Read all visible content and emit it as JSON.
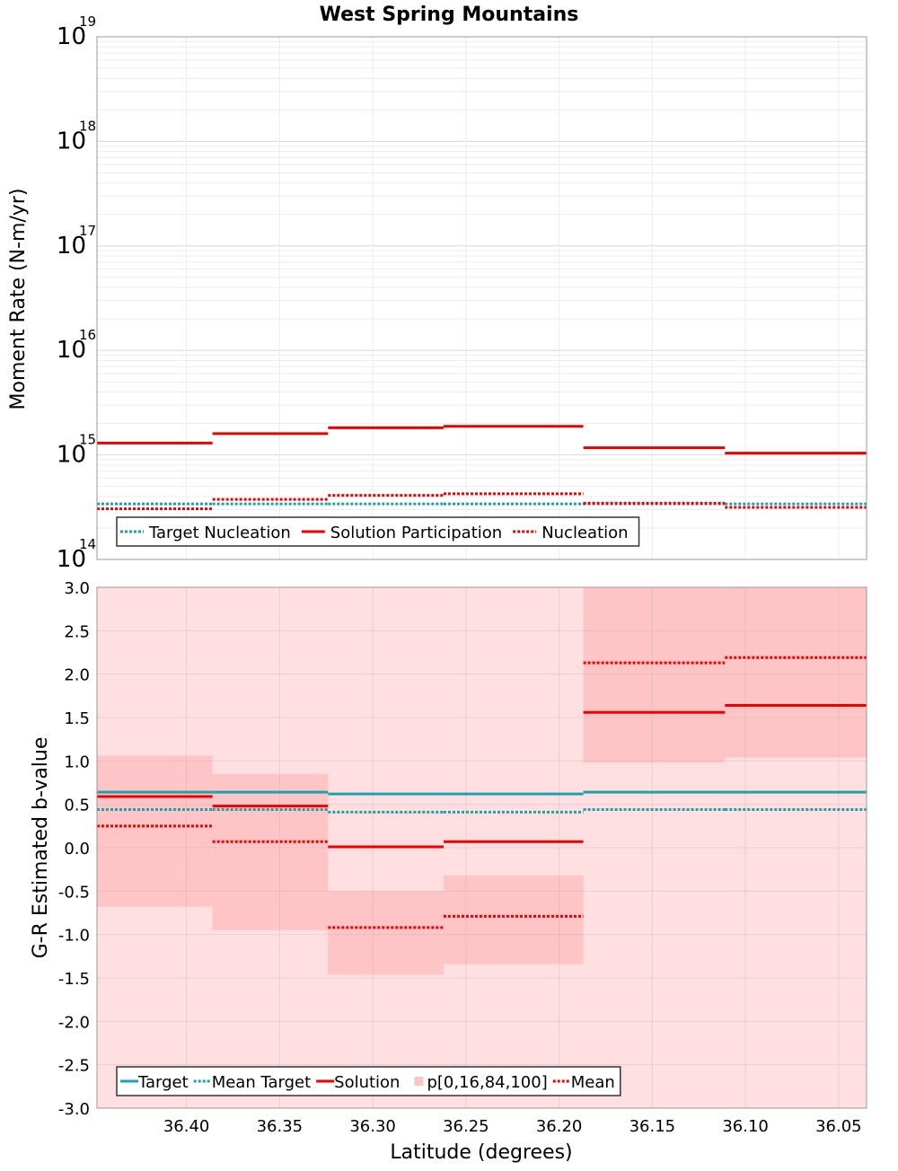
{
  "chart_data": [
    {
      "type": "line",
      "title": "West Spring Mountains",
      "xlabel": "",
      "ylabel": "Moment Rate (N-m/yr)",
      "yscale": "log",
      "ylim": [
        100000000000000.0,
        1e+19
      ],
      "xlim": [
        36.448,
        36.035
      ],
      "x_reversed": true,
      "grid": true,
      "legend": "bottom-left",
      "y_tick_labels": [
        {
          "base": "10",
          "exp": "14",
          "value": 100000000000000.0
        },
        {
          "base": "10",
          "exp": "15",
          "value": 1000000000000000.0
        },
        {
          "base": "10",
          "exp": "16",
          "value": 1e+16
        },
        {
          "base": "10",
          "exp": "17",
          "value": 1e+17
        },
        {
          "base": "10",
          "exp": "18",
          "value": 1e+18
        },
        {
          "base": "10",
          "exp": "19",
          "value": 1e+19
        }
      ],
      "series": [
        {
          "name": "Target Nucleation",
          "style": "dotted",
          "color": "#1aa3a8",
          "segments": [
            {
              "x0": 36.448,
              "x1": 36.386,
              "y": 340000000000000.0
            },
            {
              "x0": 36.386,
              "x1": 36.324,
              "y": 340000000000000.0
            },
            {
              "x0": 36.324,
              "x1": 36.262,
              "y": 340000000000000.0
            },
            {
              "x0": 36.262,
              "x1": 36.187,
              "y": 340000000000000.0
            },
            {
              "x0": 36.187,
              "x1": 36.111,
              "y": 340000000000000.0
            },
            {
              "x0": 36.111,
              "x1": 36.035,
              "y": 340000000000000.0
            }
          ]
        },
        {
          "name": "Solution Participation",
          "style": "solid",
          "color": "#ee0000",
          "segments": [
            {
              "x0": 36.448,
              "x1": 36.386,
              "y": 1300000000000000.0
            },
            {
              "x0": 36.386,
              "x1": 36.324,
              "y": 1600000000000000.0
            },
            {
              "x0": 36.324,
              "x1": 36.262,
              "y": 1820000000000000.0
            },
            {
              "x0": 36.262,
              "x1": 36.187,
              "y": 1880000000000000.0
            },
            {
              "x0": 36.187,
              "x1": 36.111,
              "y": 1170000000000000.0
            },
            {
              "x0": 36.111,
              "x1": 36.035,
              "y": 1040000000000000.0
            }
          ]
        },
        {
          "name": "Nucleation",
          "style": "dotted",
          "color": "#ee0000",
          "segments": [
            {
              "x0": 36.448,
              "x1": 36.386,
              "y": 305000000000000.0
            },
            {
              "x0": 36.386,
              "x1": 36.324,
              "y": 375000000000000.0
            },
            {
              "x0": 36.324,
              "x1": 36.262,
              "y": 410000000000000.0
            },
            {
              "x0": 36.262,
              "x1": 36.187,
              "y": 425000000000000.0
            },
            {
              "x0": 36.187,
              "x1": 36.111,
              "y": 345000000000000.0
            },
            {
              "x0": 36.111,
              "x1": 36.035,
              "y": 315000000000000.0
            }
          ]
        }
      ]
    },
    {
      "type": "line",
      "title": "",
      "xlabel": "Latitude (degrees)",
      "ylabel": "G-R Estimated b-value",
      "ylim": [
        -3.0,
        3.0
      ],
      "xlim": [
        36.448,
        36.035
      ],
      "x_reversed": true,
      "grid": true,
      "legend": "bottom-left",
      "x_ticks": [
        36.4,
        36.35,
        36.3,
        36.25,
        36.2,
        36.15,
        36.1,
        36.05
      ],
      "x_tick_labels": [
        "36.40",
        "36.35",
        "36.30",
        "36.25",
        "36.20",
        "36.15",
        "36.10",
        "36.05"
      ],
      "y_ticks": [
        -3.0,
        -2.5,
        -2.0,
        -1.5,
        -1.0,
        -0.5,
        0.0,
        0.5,
        1.0,
        1.5,
        2.0,
        2.5,
        3.0
      ],
      "y_tick_labels": [
        "-3.0",
        "-2.5",
        "-2.0",
        "-1.5",
        "-1.0",
        "-0.5",
        "0.0",
        "0.5",
        "1.0",
        "1.5",
        "2.0",
        "2.5",
        "3.0"
      ],
      "bands": {
        "name": "p[0,16,84,100]",
        "outer_color": "#ffdfe0",
        "inner_color": "#ffc4c5",
        "outer_range": [
          -3.0,
          3.0
        ],
        "segments": [
          {
            "x0": 36.448,
            "x1": 36.386,
            "p16": -0.68,
            "p84": 1.06
          },
          {
            "x0": 36.386,
            "x1": 36.324,
            "p16": -0.95,
            "p84": 0.85
          },
          {
            "x0": 36.324,
            "x1": 36.262,
            "p16": -1.46,
            "p84": -0.5
          },
          {
            "x0": 36.262,
            "x1": 36.187,
            "p16": -1.34,
            "p84": -0.32
          },
          {
            "x0": 36.187,
            "x1": 36.111,
            "p16": 0.98,
            "p84": 3.0
          },
          {
            "x0": 36.111,
            "x1": 36.035,
            "p16": 1.04,
            "p84": 3.0
          }
        ]
      },
      "series": [
        {
          "name": "Target",
          "style": "solid",
          "color": "#1aa3a8",
          "segments": [
            {
              "x0": 36.448,
              "x1": 36.386,
              "y": 0.64
            },
            {
              "x0": 36.386,
              "x1": 36.324,
              "y": 0.64
            },
            {
              "x0": 36.324,
              "x1": 36.262,
              "y": 0.62
            },
            {
              "x0": 36.262,
              "x1": 36.187,
              "y": 0.62
            },
            {
              "x0": 36.187,
              "x1": 36.111,
              "y": 0.64
            },
            {
              "x0": 36.111,
              "x1": 36.035,
              "y": 0.64
            }
          ]
        },
        {
          "name": "Mean Target",
          "style": "dotted",
          "color": "#1aa3a8",
          "segments": [
            {
              "x0": 36.448,
              "x1": 36.386,
              "y": 0.44
            },
            {
              "x0": 36.386,
              "x1": 36.324,
              "y": 0.44
            },
            {
              "x0": 36.324,
              "x1": 36.262,
              "y": 0.41
            },
            {
              "x0": 36.262,
              "x1": 36.187,
              "y": 0.41
            },
            {
              "x0": 36.187,
              "x1": 36.111,
              "y": 0.44
            },
            {
              "x0": 36.111,
              "x1": 36.035,
              "y": 0.44
            }
          ]
        },
        {
          "name": "Solution",
          "style": "solid",
          "color": "#ee0000",
          "segments": [
            {
              "x0": 36.448,
              "x1": 36.386,
              "y": 0.59
            },
            {
              "x0": 36.386,
              "x1": 36.324,
              "y": 0.48
            },
            {
              "x0": 36.324,
              "x1": 36.262,
              "y": 0.01
            },
            {
              "x0": 36.262,
              "x1": 36.187,
              "y": 0.07
            },
            {
              "x0": 36.187,
              "x1": 36.111,
              "y": 1.56
            },
            {
              "x0": 36.111,
              "x1": 36.035,
              "y": 1.64
            }
          ]
        },
        {
          "name": "Mean",
          "style": "dotted",
          "color": "#ee0000",
          "segments": [
            {
              "x0": 36.448,
              "x1": 36.386,
              "y": 0.25
            },
            {
              "x0": 36.386,
              "x1": 36.324,
              "y": 0.07
            },
            {
              "x0": 36.324,
              "x1": 36.262,
              "y": -0.92
            },
            {
              "x0": 36.262,
              "x1": 36.187,
              "y": -0.79
            },
            {
              "x0": 36.187,
              "x1": 36.111,
              "y": 2.13
            },
            {
              "x0": 36.111,
              "x1": 36.035,
              "y": 2.19
            }
          ]
        }
      ],
      "legend_order": [
        "Target",
        "Mean Target",
        "Solution",
        "p[0,16,84,100]",
        "Mean"
      ]
    }
  ]
}
